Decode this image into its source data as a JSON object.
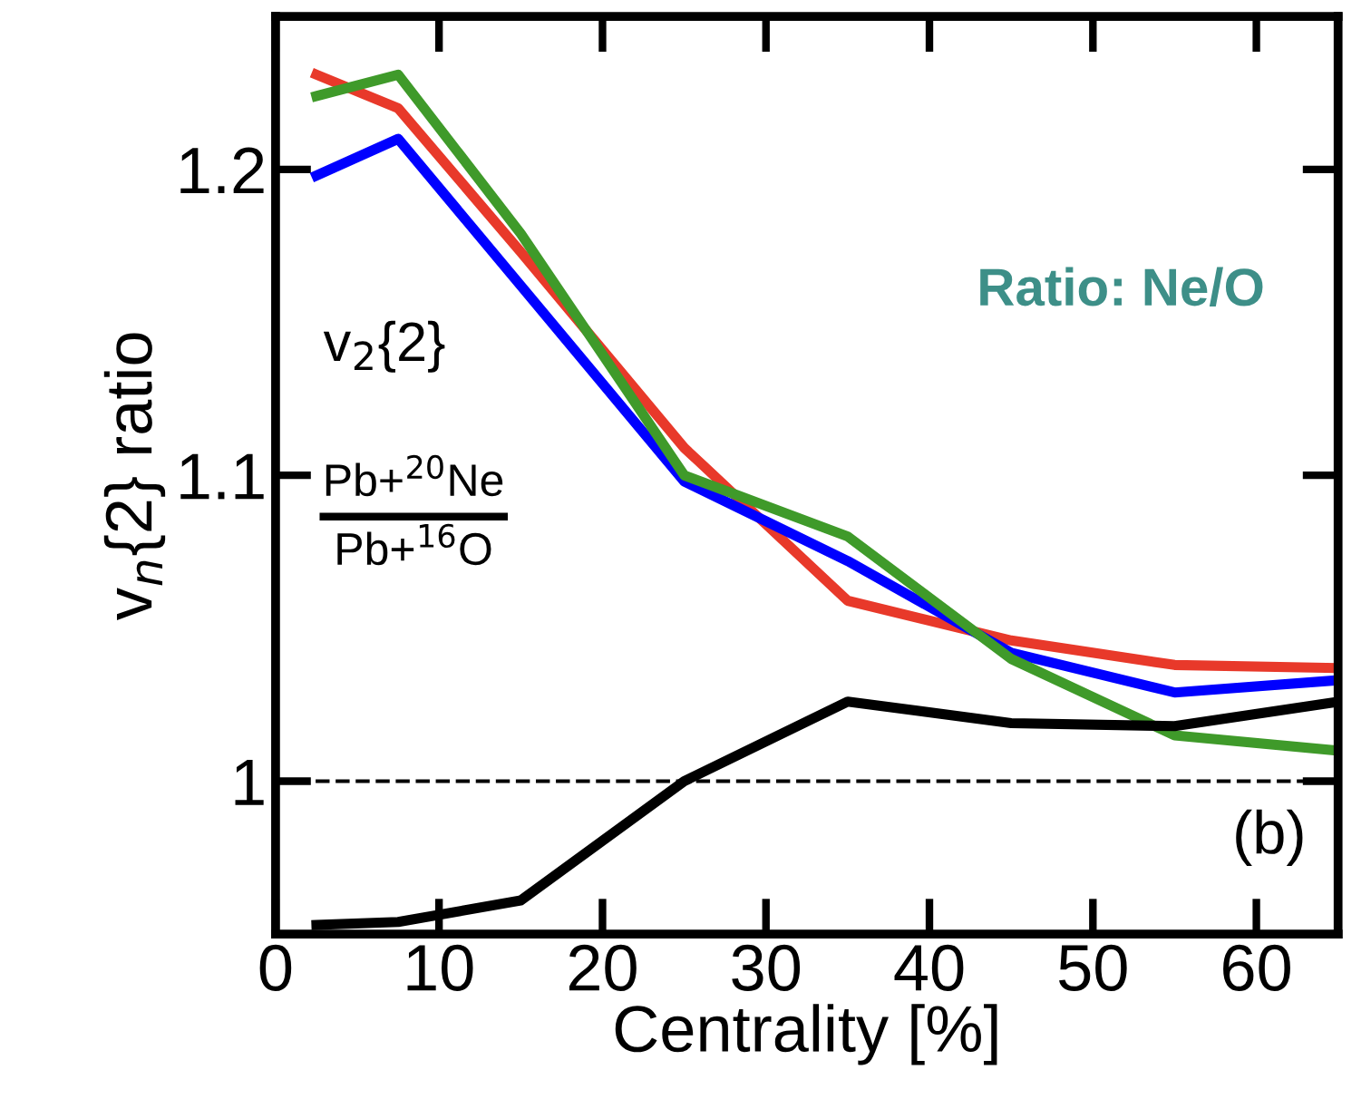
{
  "chart_data": {
    "type": "line",
    "xlabel": "Centrality [%]",
    "ylabel": "v$_{n}${2} ratio",
    "x": [
      2.5,
      7.5,
      15,
      25,
      35,
      45,
      55,
      65
    ],
    "series": [
      {
        "color": "#e8392a",
        "values": [
          1.231,
          1.22,
          1.173,
          1.109,
          1.059,
          1.046,
          1.038,
          1.037
        ]
      },
      {
        "color": "#0000ff",
        "values": [
          1.198,
          1.21,
          1.162,
          1.098,
          1.072,
          1.042,
          1.029,
          1.033
        ]
      },
      {
        "color": "#3f9a2a",
        "values": [
          1.224,
          1.231,
          1.179,
          1.1,
          1.08,
          1.04,
          1.015,
          1.01
        ]
      },
      {
        "color": "#000000",
        "values": [
          0.953,
          0.954,
          0.961,
          1.0,
          1.026,
          1.019,
          1.018,
          1.026
        ]
      }
    ],
    "xlim": [
      0,
      65
    ],
    "ylim": [
      0.95,
      1.25
    ],
    "xticks": [
      0,
      10,
      20,
      30,
      40,
      50,
      60
    ],
    "yticks": [
      1,
      1.1,
      1.2
    ],
    "ref_lines": [
      {
        "axis": "y",
        "value": 1,
        "color": "#000000",
        "line_style": "dashed"
      }
    ],
    "annotations": [
      "Ratio: Ne/O",
      "v$_{2}${2}",
      "Pb+$^{20}$Ne",
      "Pb+$^{16}$O",
      "(b)"
    ],
    "grid": false,
    "legend": false,
    "marker": "none",
    "line_style": "solid"
  }
}
